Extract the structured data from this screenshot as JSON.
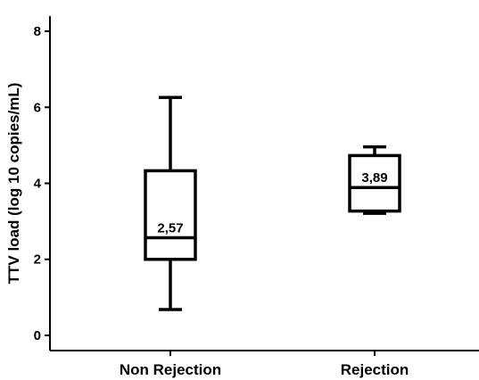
{
  "chart_data": {
    "type": "boxplot",
    "ylabel": "TTV load (log 10 copies/mL)",
    "xlabel": "",
    "ylim": [
      -0.4,
      8.4
    ],
    "yticks": [
      0,
      2,
      4,
      6,
      8
    ],
    "categories": [
      "Non Rejection",
      "Rejection"
    ],
    "boxes": [
      {
        "category": "Non Rejection",
        "whisker_low": 0.68,
        "q1": 2.0,
        "median": 2.57,
        "q3": 4.33,
        "whisker_high": 6.26,
        "median_label": "2,57"
      },
      {
        "category": "Rejection",
        "whisker_low": 3.21,
        "q1": 3.27,
        "median": 3.89,
        "q3": 4.73,
        "whisker_high": 4.96,
        "median_label": "3,89"
      }
    ]
  }
}
